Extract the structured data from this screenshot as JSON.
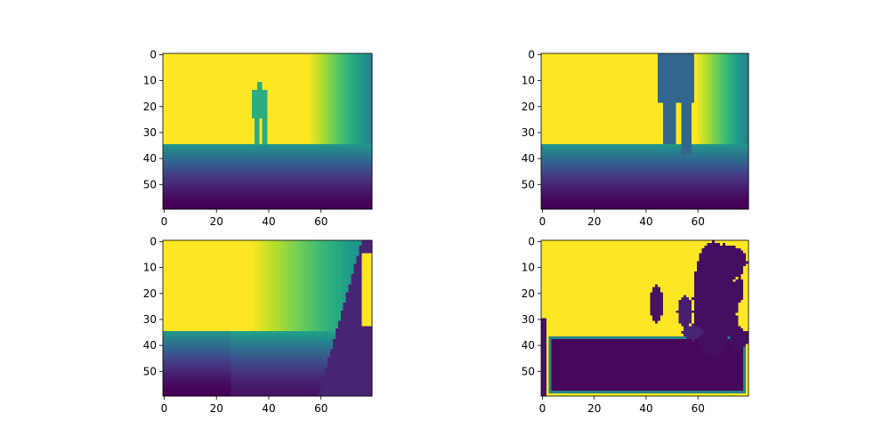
{
  "chart_data": [
    {
      "type": "heatmap",
      "panel": "top-left",
      "colormap": "viridis",
      "grid_shape": [
        60,
        80
      ],
      "xlim": [
        0,
        80
      ],
      "ylim": [
        60,
        0
      ],
      "xticks": [
        0,
        20,
        40,
        60
      ],
      "yticks": [
        0,
        10,
        20,
        30,
        40,
        50
      ],
      "content": "depth image: flat far wall (max value) rows 0-34, floor gradient rows 35-59 (decreasing), standing person silhouette around columns 34-39, rows 11-36 at mid value, right side gradient from column 55 to 79"
    },
    {
      "type": "heatmap",
      "panel": "top-right",
      "colormap": "viridis",
      "grid_shape": [
        60,
        80
      ],
      "xlim": [
        0,
        80
      ],
      "ylim": [
        60,
        0
      ],
      "xticks": [
        0,
        20,
        40,
        60
      ],
      "yticks": [
        0,
        10,
        20,
        30,
        40,
        50
      ],
      "content": "depth image: close person (low-mid value) occupying columns 45-59 from top down to row 38, right side gradient from column 59 to 79, floor gradient rows 35-59"
    },
    {
      "type": "heatmap",
      "panel": "bottom-left",
      "colormap": "viridis",
      "grid_shape": [
        60,
        80
      ],
      "xlim": [
        0,
        80
      ],
      "ylim": [
        60,
        0
      ],
      "xticks": [
        0,
        20,
        40,
        60
      ],
      "yticks": [
        0,
        10,
        20,
        30,
        40,
        50
      ],
      "content": "depth image: wall max value columns 0-32, gradient columns 33-75, dark occlusion region on right edge rows 0-59, floor gradient rows 35-59"
    },
    {
      "type": "heatmap",
      "panel": "bottom-right",
      "colormap": "viridis",
      "grid_shape": [
        60,
        80
      ],
      "xlim": [
        0,
        80
      ],
      "ylim": [
        60,
        0
      ],
      "xticks": [
        0,
        20,
        40,
        60
      ],
      "yticks": [
        0,
        10,
        20,
        30,
        40,
        50
      ],
      "content": "mostly max value (yellow) upper region, large dark rectangle rows 38-58 columns 4-77, dark blobs around columns 40-80 rows 0-40"
    }
  ],
  "colors": {
    "viridis_stops": [
      "#440154",
      "#482878",
      "#3e4989",
      "#31688e",
      "#26828e",
      "#1f9e89",
      "#35b779",
      "#6ece58",
      "#b5de2b",
      "#fde725"
    ]
  }
}
